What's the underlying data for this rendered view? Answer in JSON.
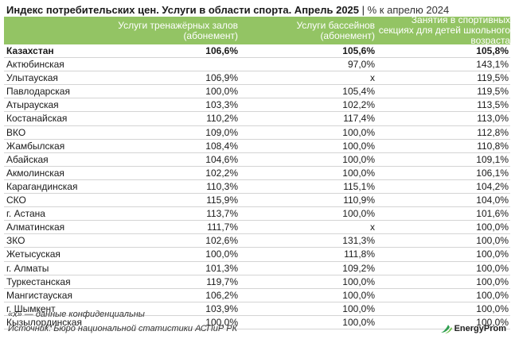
{
  "title": {
    "main": "Индекс потребительских цен. Услуги в области спорта. Апрель 2025",
    "separator": " | ",
    "sub": "% к апрелю 2024"
  },
  "headers": {
    "c1": "Услуги тренажёрных залов (абонемент)",
    "c2": "Услуги бассейнов (абонемент)",
    "c3": "Занятия в спортивных секциях для детей школьного возраста"
  },
  "rows": [
    {
      "name": "Казахстан",
      "v1": "106,6%",
      "v2": "105,6%",
      "v3": "105,8%",
      "bold": true
    },
    {
      "name": "Актюбинская",
      "v1": "",
      "v2": "97,0%",
      "v3": "143,1%"
    },
    {
      "name": "Улытауская",
      "v1": "106,9%",
      "v2": "x",
      "v3": "119,5%"
    },
    {
      "name": "Павлодарская",
      "v1": "100,0%",
      "v2": "105,4%",
      "v3": "119,5%"
    },
    {
      "name": "Атырауская",
      "v1": "103,3%",
      "v2": "102,2%",
      "v3": "113,5%"
    },
    {
      "name": "Костанайская",
      "v1": "110,2%",
      "v2": "117,4%",
      "v3": "113,0%"
    },
    {
      "name": "ВКО",
      "v1": "109,0%",
      "v2": "100,0%",
      "v3": "112,8%"
    },
    {
      "name": "Жамбылская",
      "v1": "108,4%",
      "v2": "100,0%",
      "v3": "110,8%"
    },
    {
      "name": "Абайская",
      "v1": "104,6%",
      "v2": "100,0%",
      "v3": "109,1%"
    },
    {
      "name": "Акмолинская",
      "v1": "102,2%",
      "v2": "100,0%",
      "v3": "106,1%"
    },
    {
      "name": "Карагандинская",
      "v1": "110,3%",
      "v2": "115,1%",
      "v3": "104,2%"
    },
    {
      "name": "СКО",
      "v1": "115,9%",
      "v2": "110,9%",
      "v3": "104,0%"
    },
    {
      "name": "г. Астана",
      "v1": "113,7%",
      "v2": "100,0%",
      "v3": "101,6%"
    },
    {
      "name": "Алматинская",
      "v1": "111,7%",
      "v2": "x",
      "v3": "100,0%"
    },
    {
      "name": "ЗКО",
      "v1": "102,6%",
      "v2": "131,3%",
      "v3": "100,0%"
    },
    {
      "name": "Жетысуская",
      "v1": "100,0%",
      "v2": "111,8%",
      "v3": "100,0%"
    },
    {
      "name": "г. Алматы",
      "v1": "101,3%",
      "v2": "109,2%",
      "v3": "100,0%"
    },
    {
      "name": "Туркестанская",
      "v1": "119,7%",
      "v2": "100,0%",
      "v3": "100,0%"
    },
    {
      "name": "Мангистауская",
      "v1": "106,2%",
      "v2": "100,0%",
      "v3": "100,0%"
    },
    {
      "name": "г. Шымкент",
      "v1": "103,9%",
      "v2": "100,0%",
      "v3": "100,0%"
    },
    {
      "name": "Кызылординская",
      "v1": "100,0%",
      "v2": "100,0%",
      "v3": "100,0%"
    }
  ],
  "note": "«x» — данные конфиденциальны",
  "source": "Источник: Бюро национальной статистики АСПиР РК",
  "logo": {
    "text": "EnergyProm",
    "icon": "energyprom-logo-icon",
    "color": "#2e9e4f"
  },
  "colors": {
    "header_bg": "#93c464",
    "header_text": "#ffffff",
    "row_divider": "#d4d4d4"
  }
}
